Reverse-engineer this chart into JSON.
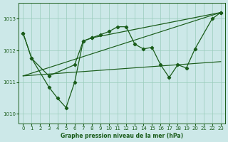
{
  "background_color": "#cce8e8",
  "grid_color": "#99ccbb",
  "line_color": "#1a5c1a",
  "xlabel": "Graphe pression niveau de la mer (hPa)",
  "ylim": [
    1009.7,
    1013.5
  ],
  "xlim": [
    -0.5,
    23.5
  ],
  "yticks": [
    1010,
    1011,
    1012,
    1013
  ],
  "xticks": [
    0,
    1,
    2,
    3,
    4,
    5,
    6,
    7,
    8,
    9,
    10,
    11,
    12,
    13,
    14,
    15,
    16,
    17,
    18,
    19,
    20,
    21,
    22,
    23
  ],
  "line1": {
    "x": [
      0,
      23
    ],
    "y": [
      1011.2,
      1013.2
    ]
  },
  "line2": {
    "x": [
      0,
      23
    ],
    "y": [
      1011.2,
      1011.65
    ]
  },
  "line3": {
    "points": [
      [
        0,
        1012.55
      ],
      [
        1,
        1011.75
      ],
      [
        3,
        1011.2
      ],
      [
        6,
        1011.55
      ],
      [
        7,
        1012.3
      ],
      [
        8,
        1012.4
      ],
      [
        9,
        1012.5
      ],
      [
        10,
        1012.6
      ],
      [
        11,
        1012.75
      ],
      [
        12,
        1012.75
      ],
      [
        13,
        1012.2
      ],
      [
        14,
        1012.05
      ],
      [
        15,
        1012.1
      ],
      [
        16,
        1011.55
      ],
      [
        17,
        1011.15
      ],
      [
        18,
        1011.55
      ],
      [
        19,
        1011.45
      ],
      [
        20,
        1012.05
      ],
      [
        22,
        1013.0
      ],
      [
        23,
        1013.2
      ]
    ]
  },
  "line4": {
    "points": [
      [
        0,
        1012.55
      ],
      [
        1,
        1011.75
      ],
      [
        3,
        1010.85
      ],
      [
        4,
        1010.5
      ],
      [
        5,
        1010.2
      ],
      [
        6,
        1011.0
      ],
      [
        7,
        1012.3
      ],
      [
        8,
        1012.4
      ],
      [
        23,
        1013.2
      ]
    ]
  },
  "line5": {
    "points": [
      [
        16,
        1011.55
      ],
      [
        17,
        1011.15
      ],
      [
        18,
        1011.55
      ],
      [
        19,
        1011.45
      ],
      [
        21,
        1011.85
      ],
      [
        22,
        1013.0
      ],
      [
        23,
        1013.2
      ]
    ]
  }
}
